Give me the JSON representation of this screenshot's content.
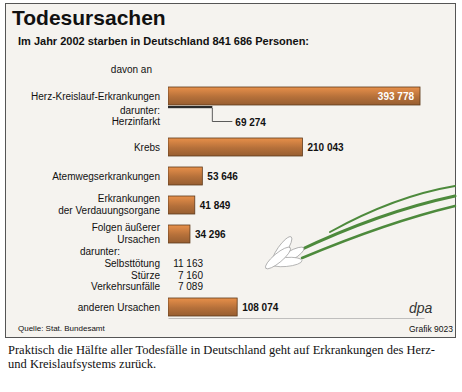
{
  "chart_data": {
    "type": "bar",
    "orientation": "horizontal",
    "title": "Todesursachen",
    "subtitle": "Im Jahr 2002 starben in Deutschland 841 686 Personen:",
    "intro": "davon an",
    "categories": [
      "Herz-Kreislauf-Erkrankungen",
      "Krebs",
      "Atemwegserkrankungen",
      "Erkrankungen\nder Verdauungsorgane",
      "Folgen äußerer\nUrsachen",
      "anderen Ursachen"
    ],
    "values": [
      393778,
      210043,
      53646,
      41849,
      34296,
      108074
    ],
    "value_labels": [
      "393 778",
      "210 043",
      "53 646",
      "41 849",
      "34 296",
      "108 074"
    ],
    "details": [
      {
        "type": "bar",
        "title": "darunter:",
        "categories": [
          "Herzinfarkt"
        ],
        "values": [
          69274
        ],
        "value_labels": [
          "69 274"
        ]
      },
      null,
      null,
      null,
      {
        "type": "table",
        "title": "darunter:",
        "categories": [
          "Selbsttötung",
          "Stürze",
          "Verkehrsunfälle"
        ],
        "values": [
          11163,
          7160,
          7089
        ],
        "value_labels": [
          "11 163",
          "7 160",
          "7 089"
        ]
      },
      null
    ],
    "color": "#b5703a",
    "xlim": [
      0,
      400000
    ],
    "data_labels": true,
    "tick_labels": false,
    "grid": false,
    "source": "Quelle: Stat. Bundesamt",
    "credit": "dpa",
    "credit_detail": "Grafik 9023",
    "caption": "Praktisch die Hälfte aller Todesfälle in Deutschland geht auf Erkrankungen des Herz- und Kreislaufsystems zurück."
  }
}
